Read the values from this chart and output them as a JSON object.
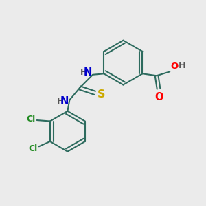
{
  "background_color": "#ebebeb",
  "bond_color": "#2d6b5e",
  "bond_width": 1.5,
  "atom_colors": {
    "N": "#0000cc",
    "S": "#ccaa00",
    "O": "#ff0000",
    "Cl": "#228b22",
    "C": "#2d6b5e",
    "H": "#555555"
  },
  "font_size": 8.5,
  "figsize": [
    3.0,
    3.0
  ],
  "dpi": 100
}
